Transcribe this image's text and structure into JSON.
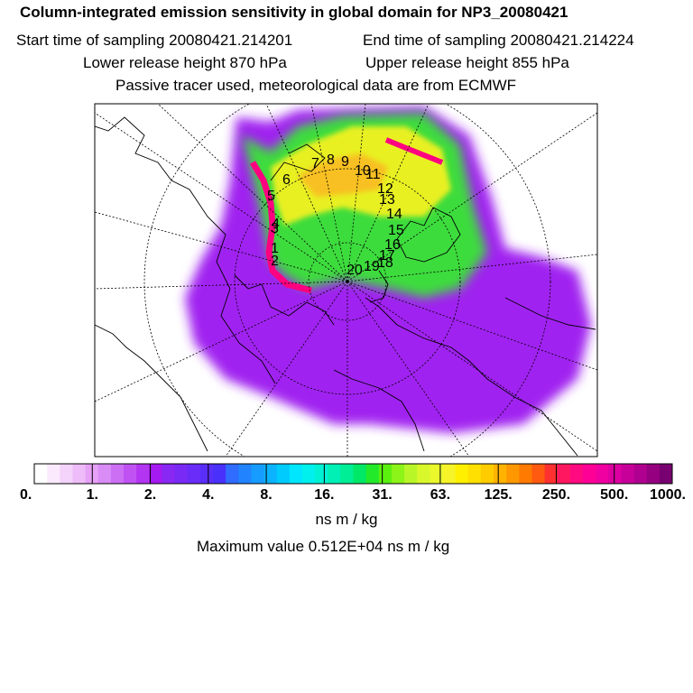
{
  "title": "Column-integrated emission sensitivity in global domain for NP3_20080421",
  "sampling": {
    "start": "Start time of sampling 20080421.214201",
    "end": "End time of sampling 20080421.214224"
  },
  "release": {
    "lower": "Lower release height  870 hPa",
    "upper": "Upper release height  855 hPa"
  },
  "tracer_note": "Passive tracer used, meteorological data are from ECMWF",
  "legend": {
    "tick_labels": [
      "0.",
      "1.",
      "2.",
      "4.",
      "8.",
      "16.",
      "31.",
      "63.",
      "125.",
      "250.",
      "500.",
      "1000."
    ],
    "units": "ns m / kg",
    "colors": [
      "#ffffff",
      "#fbeafd",
      "#f4d3fb",
      "#eebcf9",
      "#e6a2f7",
      "#d98cf5",
      "#cc6ff4",
      "#c052f3",
      "#b334f1",
      "#a51af0",
      "#8a28f3",
      "#7a2af5",
      "#6a2cf8",
      "#5a2ef9",
      "#4a30fb",
      "#2f6cff",
      "#2283ff",
      "#169bff",
      "#0bb3ff",
      "#00cbff",
      "#00e6ff",
      "#00f0ee",
      "#00f2d4",
      "#00f0b6",
      "#00ee95",
      "#00e866",
      "#22ea2a",
      "#5af010",
      "#8cf418",
      "#b8f628",
      "#d8f82c",
      "#eaf82c",
      "#f6f428",
      "#fff000",
      "#ffe000",
      "#ffcc00",
      "#ffb300",
      "#ff9800",
      "#ff7a00",
      "#ff5a10",
      "#ff3030",
      "#ff1860",
      "#ff0a80",
      "#ff0096",
      "#f000a0",
      "#dc00a0",
      "#c8009a",
      "#b00090",
      "#960080",
      "#780070"
    ]
  },
  "maximum_value": "Maximum value  0.512E+04 ns m / kg",
  "trajectory_labels": [
    "1",
    "2",
    "3",
    "4",
    "5",
    "6",
    "7",
    "8",
    "9",
    "10",
    "11",
    "12",
    "13",
    "14",
    "15",
    "16",
    "17",
    "18",
    "19",
    "20"
  ],
  "plume_colors": {
    "outer": "#a020f0",
    "mid": "#3cdc3c",
    "inner": "#e8f020",
    "core": "#f8c020",
    "peak": "#ff0080",
    "coast": "#000000"
  }
}
